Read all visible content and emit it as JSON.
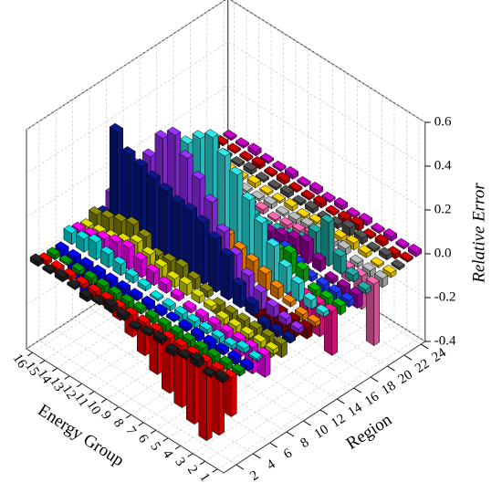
{
  "chart_data": {
    "type": "bar3d",
    "x_label": "Energy Group",
    "y_label": "Region",
    "z_label": "Relative Error",
    "energy_groups": [
      1,
      2,
      3,
      4,
      5,
      6,
      7,
      8,
      9,
      10,
      11,
      12,
      13,
      14,
      15,
      16
    ],
    "elim": [
      0.5,
      16.5
    ],
    "rlim": [
      0.5,
      24.5
    ],
    "region_ticks": [
      2,
      4,
      6,
      8,
      10,
      12,
      14,
      16,
      18,
      20,
      22,
      24
    ],
    "zlim": [
      -0.4,
      0.6
    ],
    "zticks": [
      -0.4,
      -0.2,
      {
        "value": 0,
        "label": "0.0"
      },
      0.2,
      0.4,
      0.6
    ],
    "grid": true,
    "series": [
      {
        "region": 1,
        "color": "#222222",
        "values": [
          0.02,
          -0.01,
          0.03,
          0.01,
          -0.02,
          0.02,
          0.01,
          -0.01,
          0.02,
          0.03,
          0.01,
          -0.02,
          0.01,
          0.02,
          0.01,
          0.02
        ]
      },
      {
        "region": 2,
        "color": "#ff0000",
        "values": [
          -0.18,
          -0.3,
          -0.36,
          -0.32,
          -0.28,
          -0.25,
          -0.2,
          -0.15,
          -0.1,
          -0.06,
          -0.04,
          -0.03,
          -0.02,
          -0.02,
          -0.03,
          -0.02
        ]
      },
      {
        "region": 3,
        "color": "#00a000",
        "values": [
          -0.02,
          -0.03,
          -0.04,
          -0.05,
          -0.06,
          -0.05,
          -0.04,
          -0.03,
          -0.02,
          -0.08,
          -0.1,
          -0.05,
          -0.03,
          -0.02,
          -0.01,
          -0.02
        ]
      },
      {
        "region": 4,
        "color": "#0000ff",
        "values": [
          -0.02,
          -0.03,
          -0.02,
          -0.04,
          -0.03,
          -0.02,
          -0.01,
          -0.02,
          -0.03,
          -0.02,
          -0.05,
          -0.08,
          -0.12,
          -0.15,
          -0.1,
          -0.04
        ]
      },
      {
        "region": 5,
        "color": "#00e5e5",
        "values": [
          0.01,
          0.02,
          -0.02,
          -0.03,
          -0.02,
          -0.03,
          -0.04,
          -0.02,
          -0.01,
          0.02,
          0.03,
          0.05,
          0.06,
          0.08,
          0.06,
          0.05
        ]
      },
      {
        "region": 6,
        "color": "#ff00ff",
        "values": [
          -0.1,
          -0.12,
          -0.08,
          -0.06,
          -0.04,
          -0.03,
          -0.02,
          0.02,
          0.04,
          0.06,
          0.08,
          0.1,
          0.09,
          0.07,
          0.05,
          0.04
        ]
      },
      {
        "region": 7,
        "color": "#e0e000",
        "values": [
          -0.02,
          -0.03,
          -0.02,
          -0.04,
          -0.03,
          0.02,
          0.03,
          0.05,
          0.04,
          0.06,
          0.08,
          0.1,
          0.07,
          0.05,
          0.04,
          0.03
        ]
      },
      {
        "region": 8,
        "color": "#8c8c00",
        "values": [
          -0.06,
          -0.1,
          -0.08,
          -0.12,
          -0.1,
          -0.05,
          0.03,
          0.05,
          0.07,
          0.06,
          0.05,
          0.1,
          0.12,
          0.1,
          0.08,
          0.06
        ]
      },
      {
        "region": 9,
        "color": "#0a1a8c",
        "values": [
          -0.02,
          -0.03,
          -0.04,
          0.05,
          0.1,
          0.2,
          0.24,
          0.28,
          0.3,
          0.3,
          0.32,
          0.34,
          0.36,
          0.38,
          0.45,
          0.04
        ]
      },
      {
        "region": 10,
        "color": "#9b30ff",
        "values": [
          0.02,
          0.03,
          0.05,
          0.08,
          0.12,
          0.18,
          0.25,
          0.35,
          0.42,
          0.48,
          0.55,
          0.5,
          0.38,
          0.3,
          0.2,
          0.1
        ]
      },
      {
        "region": 11,
        "color": "#8b0000",
        "values": [
          -0.05,
          -0.08,
          -0.1,
          -0.12,
          -0.1,
          -0.08,
          -0.05,
          -0.03,
          0.02,
          0.03,
          0.02,
          0.01,
          0.02,
          0.01,
          0.02,
          0.01
        ]
      },
      {
        "region": 12,
        "color": "#ff8c00",
        "values": [
          -0.02,
          -0.03,
          0.02,
          0.05,
          0.08,
          0.1,
          0.12,
          0.15,
          0.1,
          0.08,
          0.06,
          0.05,
          0.04,
          0.03,
          0.02,
          0.01
        ]
      },
      {
        "region": 13,
        "color": "#30e8e8",
        "values": [
          0.02,
          0.04,
          0.08,
          0.12,
          0.18,
          0.25,
          0.32,
          0.4,
          0.45,
          0.5,
          0.46,
          0.4,
          0.3,
          0.2,
          0.1,
          0.05
        ]
      },
      {
        "region": 14,
        "color": "#ff1493",
        "values": [
          -0.2,
          -0.15,
          -0.1,
          -0.06,
          -0.03,
          0.02,
          0.04,
          0.06,
          0.05,
          0.03,
          0.02,
          0.01,
          0.02,
          0.01,
          0.01,
          0.02
        ]
      },
      {
        "region": 15,
        "color": "#00c000",
        "values": [
          -0.04,
          -0.08,
          -0.05,
          0.06,
          0.1,
          0.08,
          0.04,
          0.02,
          0.01,
          0.02,
          0.03,
          0.02,
          0.01,
          0.01,
          0.02,
          0.01
        ]
      },
      {
        "region": 16,
        "color": "#1e3cff",
        "values": [
          -0.03,
          -0.05,
          -0.04,
          -0.02,
          0.03,
          0.06,
          0.04,
          0.03,
          0.02,
          0.01,
          0.02,
          0.01,
          0.02,
          0.01,
          0.01,
          0.01
        ]
      },
      {
        "region": 17,
        "color": "#a000a0",
        "values": [
          -0.06,
          -0.04,
          -0.02,
          0.05,
          0.1,
          0.08,
          0.06,
          0.04,
          0.02,
          0.01,
          0.02,
          0.01,
          0.01,
          0.02,
          0.01,
          0.01
        ]
      },
      {
        "region": 18,
        "color": "#20b2aa",
        "values": [
          -0.02,
          0.03,
          0.08,
          0.2,
          0.12,
          0.05,
          0.03,
          0.02,
          0.01,
          0.02,
          0.01,
          0.01,
          0.02,
          0.01,
          0.01,
          0.02
        ]
      },
      {
        "region": 19,
        "color": "#ff69b4",
        "values": [
          -0.28,
          -0.15,
          -0.06,
          0.02,
          0.04,
          0.05,
          0.03,
          0.02,
          0.01,
          0.02,
          0.01,
          0.01,
          0.02,
          0.01,
          0.01,
          0.01
        ]
      },
      {
        "region": 20,
        "color": "#c0c0c0",
        "values": [
          -0.04,
          -0.03,
          -0.02,
          0.03,
          0.02,
          0.04,
          0.03,
          0.02,
          0.01,
          0.02,
          0.01,
          0.01,
          0.02,
          0.01,
          0.01,
          0.02
        ]
      },
      {
        "region": 21,
        "color": "#ffd700",
        "values": [
          -0.02,
          -0.01,
          0.02,
          0.03,
          0.02,
          0.01,
          0.02,
          0.01,
          0.02,
          0.01,
          0.01,
          0.02,
          0.01,
          0.01,
          0.02,
          0.01
        ]
      },
      {
        "region": 22,
        "color": "#555555",
        "values": [
          -0.01,
          0.02,
          0.01,
          0.03,
          0.04,
          0.02,
          0.01,
          0.02,
          0.01,
          0.02,
          0.01,
          0.01,
          0.02,
          0.01,
          0.01,
          0.02
        ]
      },
      {
        "region": 23,
        "color": "#d20000",
        "values": [
          0.01,
          -0.02,
          0.02,
          0.01,
          0.03,
          0.02,
          0.01,
          0.02,
          0.01,
          0.01,
          0.02,
          0.01,
          0.02,
          0.01,
          0.01,
          0.01
        ]
      },
      {
        "region": 24,
        "color": "#cc00cc",
        "values": [
          0.02,
          0.01,
          0.02,
          0.01,
          0.02,
          0.01,
          0.02,
          0.01,
          0.02,
          0.01,
          0.02,
          0.01,
          0.01,
          0.02,
          0.01,
          0.01
        ]
      }
    ]
  }
}
